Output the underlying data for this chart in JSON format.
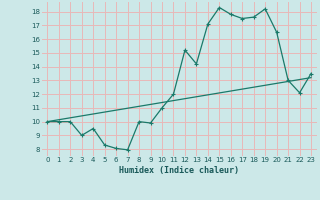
{
  "title": "",
  "xlabel": "Humidex (Indice chaleur)",
  "bg_color": "#cce8e8",
  "grid_color": "#e8b8b8",
  "line_color": "#1a7a6a",
  "xlim": [
    -0.5,
    23.5
  ],
  "ylim": [
    7.5,
    18.7
  ],
  "xtick_labels": [
    "0",
    "1",
    "2",
    "3",
    "4",
    "5",
    "6",
    "7",
    "8",
    "9",
    "10",
    "11",
    "12",
    "13",
    "14",
    "15",
    "16",
    "17",
    "18",
    "19",
    "20",
    "21",
    "22",
    "23"
  ],
  "xticks": [
    0,
    1,
    2,
    3,
    4,
    5,
    6,
    7,
    8,
    9,
    10,
    11,
    12,
    13,
    14,
    15,
    16,
    17,
    18,
    19,
    20,
    21,
    22,
    23
  ],
  "yticks": [
    8,
    9,
    10,
    11,
    12,
    13,
    14,
    15,
    16,
    17,
    18
  ],
  "curve1_x": [
    0,
    1,
    2,
    3,
    4,
    5,
    6,
    7,
    8,
    9,
    10,
    11,
    12,
    13,
    14,
    15,
    16,
    17,
    18,
    19,
    20,
    21,
    22,
    23
  ],
  "curve1_y": [
    10.0,
    10.0,
    10.0,
    9.0,
    9.5,
    8.3,
    8.05,
    7.95,
    10.0,
    9.9,
    11.0,
    12.0,
    15.2,
    14.2,
    17.1,
    18.3,
    17.8,
    17.5,
    17.6,
    18.2,
    16.5,
    13.0,
    12.1,
    13.5
  ],
  "curve2_x": [
    0,
    23
  ],
  "curve2_y": [
    10.0,
    13.2
  ]
}
